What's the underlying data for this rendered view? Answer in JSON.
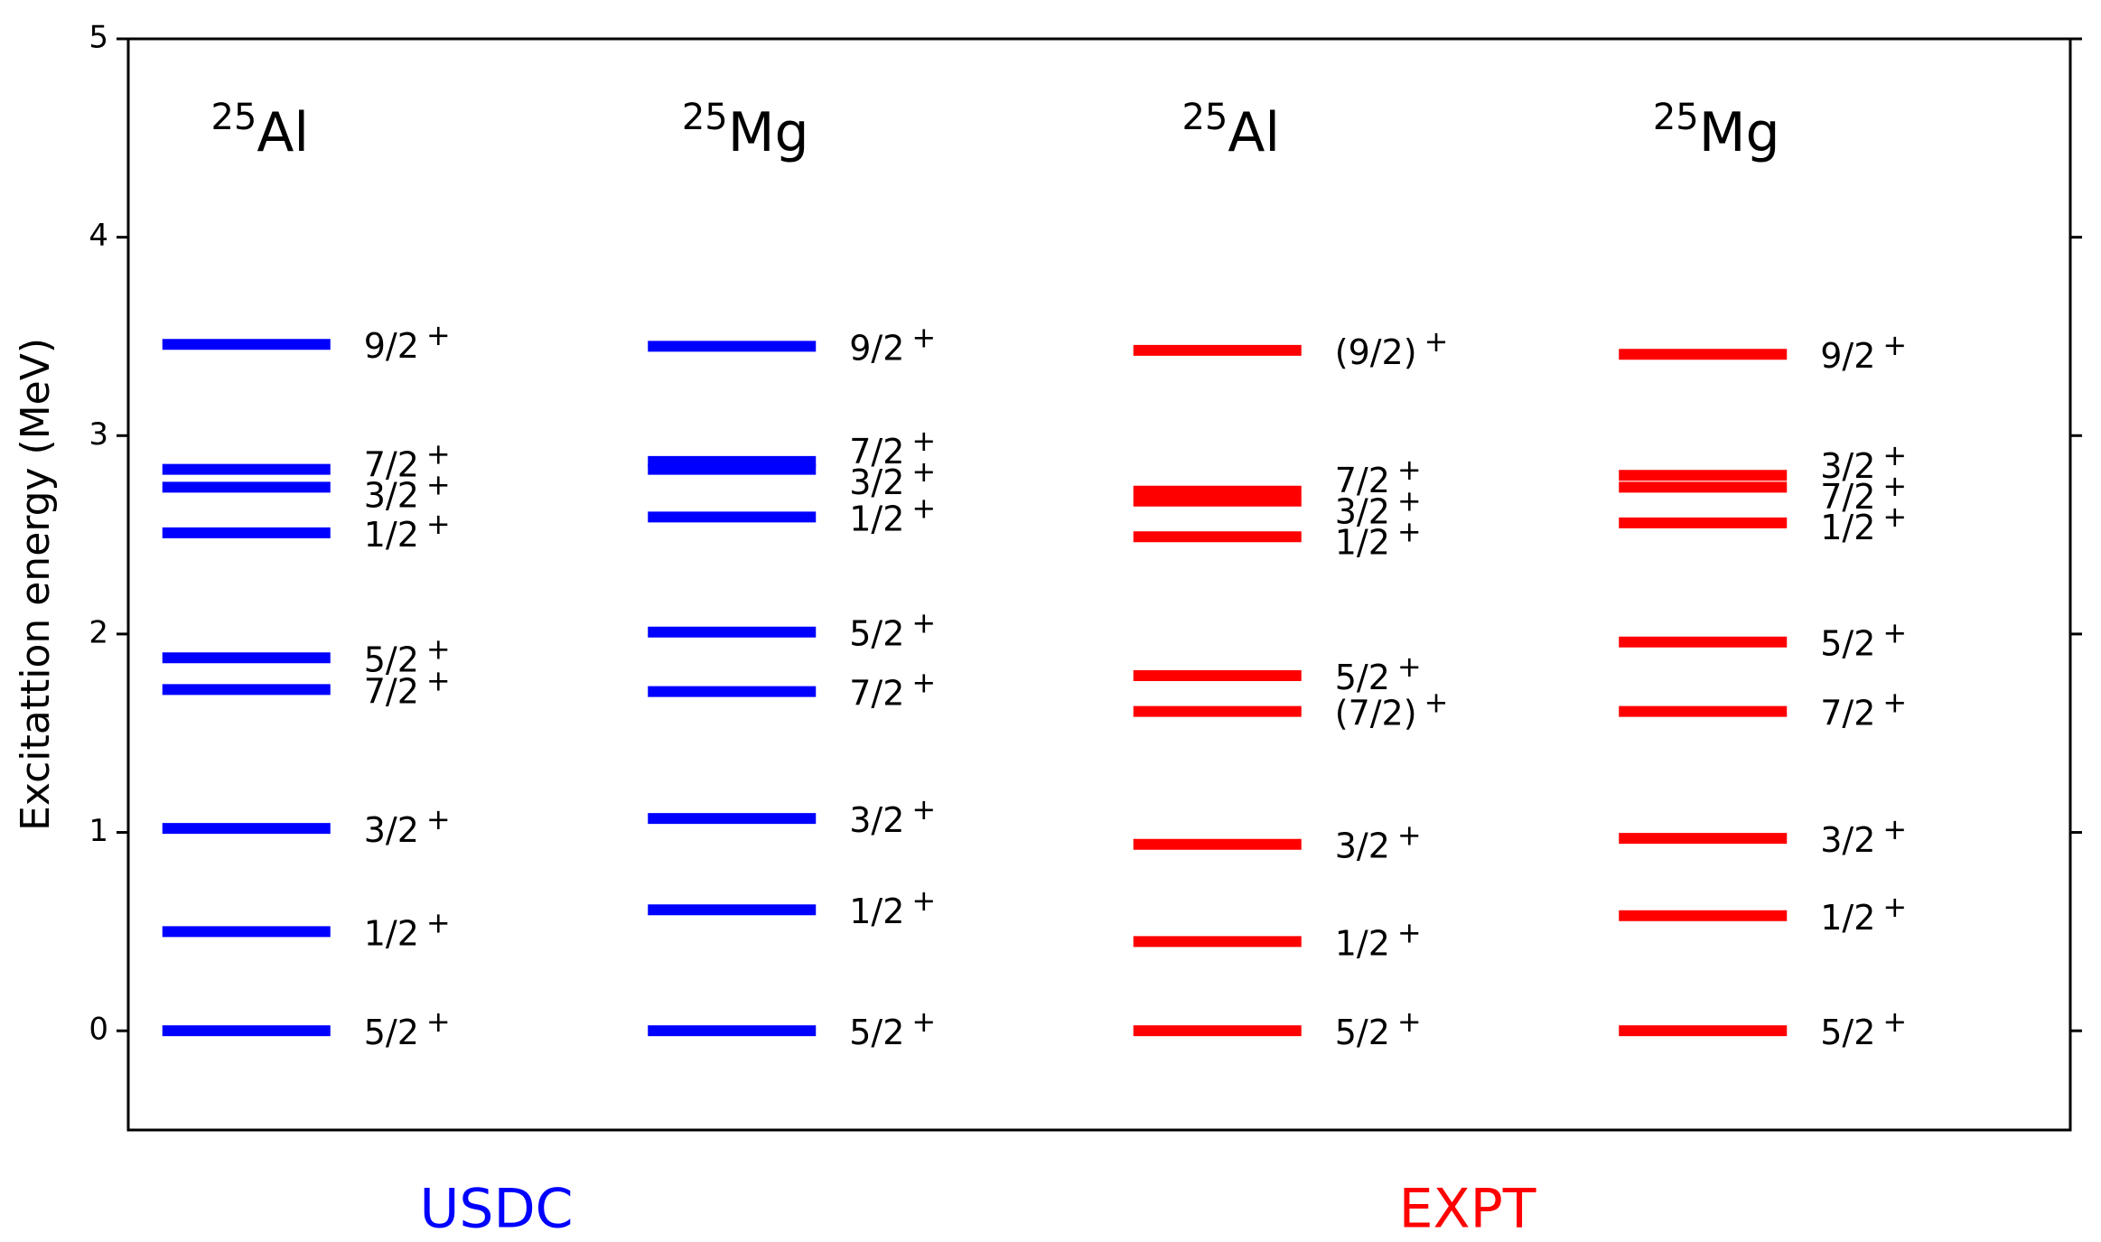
{
  "chart_data": {
    "type": "level-scheme",
    "ylabel": "Excitattion energy (MeV)",
    "ylim": [
      -0.5,
      5
    ],
    "yticks": [
      0,
      1,
      2,
      3,
      4,
      5
    ],
    "groups": [
      {
        "name": "USDC",
        "color": "#0000ff"
      },
      {
        "name": "EXPT",
        "color": "#ff0000"
      }
    ],
    "columns": [
      {
        "mass": "25",
        "element": "Al",
        "group": 0,
        "values": [
          0,
          0.5,
          1.02,
          1.72,
          1.88,
          2.51,
          2.74,
          2.83,
          3.46
        ],
        "labels": [
          "5/2",
          "1/2",
          "3/2",
          "7/2",
          "5/2",
          "1/2",
          "3/2",
          "7/2",
          "9/2"
        ],
        "parities": [
          "+",
          "+",
          "+",
          "+",
          "+",
          "+",
          "+",
          "+",
          "+"
        ]
      },
      {
        "mass": "25",
        "element": "Mg",
        "group": 0,
        "values": [
          0,
          0.61,
          1.07,
          1.71,
          2.01,
          2.59,
          2.83,
          2.87,
          3.45
        ],
        "labels": [
          "5/2",
          "1/2",
          "3/2",
          "7/2",
          "5/2",
          "1/2",
          "3/2",
          "7/2",
          "9/2"
        ],
        "parities": [
          "+",
          "+",
          "+",
          "+",
          "+",
          "+",
          "+",
          "+",
          "+"
        ]
      },
      {
        "mass": "25",
        "element": "Al",
        "group": 1,
        "values": [
          0,
          0.45,
          0.94,
          1.61,
          1.79,
          2.49,
          2.67,
          2.72,
          3.43
        ],
        "labels": [
          "5/2",
          "1/2",
          "3/2",
          "(7/2)",
          "5/2",
          "1/2",
          "3/2",
          "7/2",
          "(9/2)"
        ],
        "parities": [
          "+",
          "+",
          "+",
          "+",
          "+",
          "+",
          "+",
          "+",
          "+"
        ]
      },
      {
        "mass": "25",
        "element": "Mg",
        "group": 1,
        "values": [
          0,
          0.58,
          0.97,
          1.61,
          1.96,
          2.56,
          2.74,
          2.8,
          3.41
        ],
        "labels": [
          "5/2",
          "1/2",
          "3/2",
          "7/2",
          "5/2",
          "1/2",
          "7/2",
          "3/2",
          "9/2"
        ],
        "parities": [
          "+",
          "+",
          "+",
          "+",
          "+",
          "+",
          "+",
          "+",
          "+"
        ]
      }
    ]
  }
}
